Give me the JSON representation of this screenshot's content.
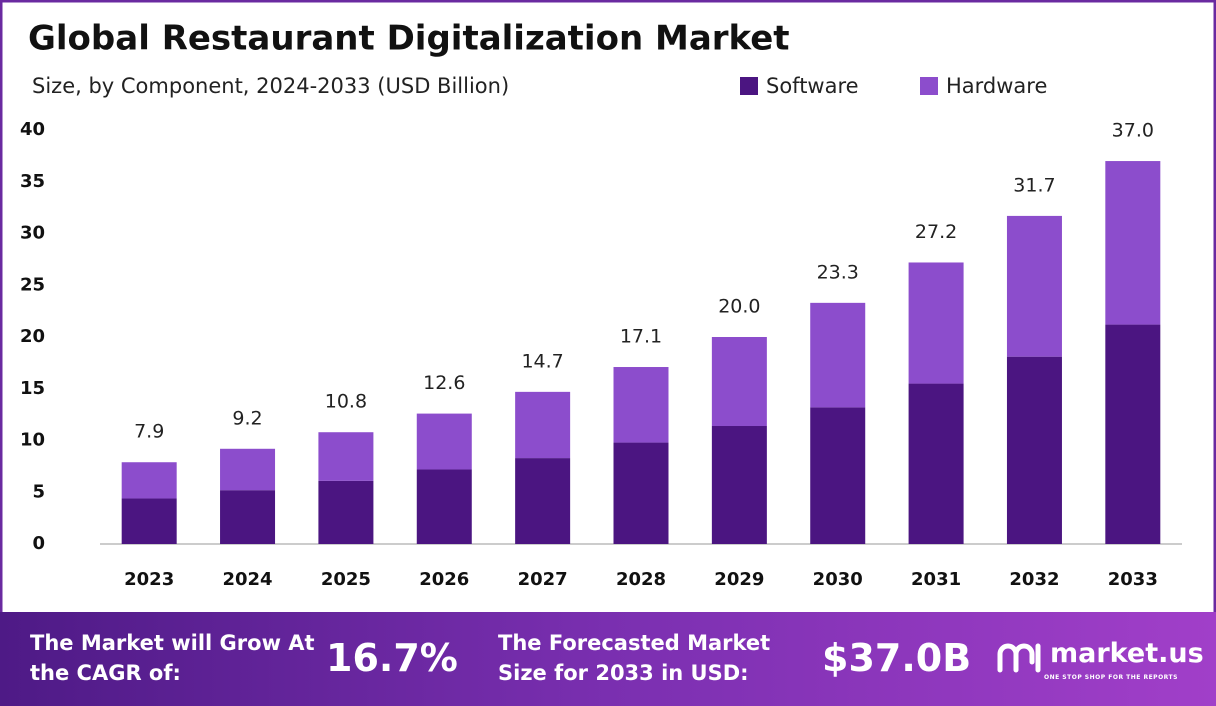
{
  "chart_data": {
    "type": "stacked-bar",
    "title": "Global Restaurant Digitalization Market",
    "subtitle": "Size, by Component, 2024-2033 (USD Billion)",
    "categories": [
      "2023",
      "2024",
      "2025",
      "2026",
      "2027",
      "2028",
      "2029",
      "2030",
      "2031",
      "2032",
      "2033"
    ],
    "series": [
      {
        "name": "Software",
        "color": "#4b1581",
        "values": [
          4.4,
          5.2,
          6.1,
          7.2,
          8.3,
          9.8,
          11.4,
          13.2,
          15.5,
          18.1,
          21.2
        ]
      },
      {
        "name": "Hardware",
        "color": "#8c4dcc",
        "values": [
          3.5,
          4.0,
          4.7,
          5.4,
          6.4,
          7.3,
          8.6,
          10.1,
          11.7,
          13.6,
          15.8
        ]
      }
    ],
    "totals": [
      7.9,
      9.2,
      10.8,
      12.6,
      14.7,
      17.1,
      20.0,
      23.3,
      27.2,
      31.7,
      37.0
    ],
    "total_labels": [
      "7.9",
      "9.2",
      "10.8",
      "12.6",
      "14.7",
      "17.1",
      "20.0",
      "23.3",
      "27.2",
      "31.7",
      "37.0"
    ],
    "ylim": [
      0,
      40
    ],
    "yticks": [
      0,
      5,
      10,
      15,
      20,
      25,
      30,
      35,
      40
    ],
    "grid": false,
    "legend": "top-right"
  },
  "footer": {
    "cagr_text": "The Market will Grow At the CAGR of:",
    "cagr_value": "16.7%",
    "forecast_text": "The Forecasted Market Size for 2033 in USD:",
    "forecast_value": "$37.0B",
    "brand": "market.us",
    "tagline": "ONE STOP SHOP FOR THE REPORTS"
  }
}
